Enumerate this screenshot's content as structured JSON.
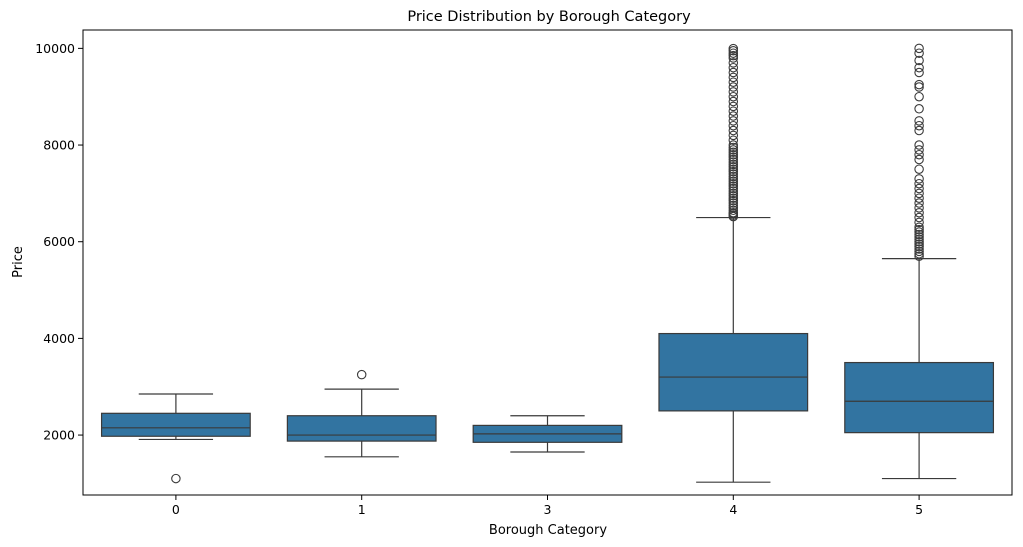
{
  "chart_data": {
    "type": "box",
    "title": "Price Distribution by Borough Category",
    "xlabel": "Borough Category",
    "ylabel": "Price",
    "ylim": [
      760,
      10380
    ],
    "yticks": [
      2000,
      4000,
      6000,
      8000,
      10000
    ],
    "categories": [
      "0",
      "1",
      "3",
      "4",
      "5"
    ],
    "box_color": "#3274a1",
    "line_color": "#3a3a3a",
    "boxes": [
      {
        "category": "0",
        "whisker_low": 1910,
        "q1": 1975,
        "median": 2150,
        "q3": 2450,
        "whisker_high": 2850,
        "outliers": [
          1100
        ]
      },
      {
        "category": "1",
        "whisker_low": 1550,
        "q1": 1875,
        "median": 2000,
        "q3": 2400,
        "whisker_high": 2950,
        "outliers": [
          3250
        ]
      },
      {
        "category": "3",
        "whisker_low": 1650,
        "q1": 1850,
        "median": 2025,
        "q3": 2200,
        "whisker_high": 2400,
        "outliers": []
      },
      {
        "category": "4",
        "whisker_low": 1025,
        "q1": 2500,
        "median": 3200,
        "q3": 4100,
        "whisker_high": 6500,
        "outliers": [
          6520,
          6550,
          6580,
          6600,
          6650,
          6700,
          6750,
          6800,
          6850,
          6900,
          6950,
          7000,
          7050,
          7100,
          7150,
          7200,
          7250,
          7300,
          7350,
          7400,
          7450,
          7500,
          7550,
          7600,
          7650,
          7700,
          7750,
          7800,
          7850,
          7900,
          7950,
          8000,
          8100,
          8200,
          8300,
          8400,
          8500,
          8600,
          8700,
          8800,
          8900,
          9000,
          9100,
          9200,
          9300,
          9400,
          9500,
          9600,
          9700,
          9800,
          9850,
          9900,
          9950,
          9995
        ]
      },
      {
        "category": "5",
        "whisker_low": 1100,
        "q1": 2050,
        "median": 2700,
        "q3": 3500,
        "whisker_high": 5650,
        "outliers": [
          5700,
          5750,
          5800,
          5850,
          5900,
          5950,
          6000,
          6050,
          6100,
          6150,
          6200,
          6250,
          6300,
          6400,
          6500,
          6600,
          6700,
          6800,
          6900,
          7000,
          7100,
          7200,
          7300,
          7500,
          7700,
          7800,
          7900,
          8000,
          8300,
          8400,
          8500,
          8750,
          9000,
          9200,
          9250,
          9500,
          9600,
          9750,
          9900,
          10000
        ]
      }
    ]
  }
}
